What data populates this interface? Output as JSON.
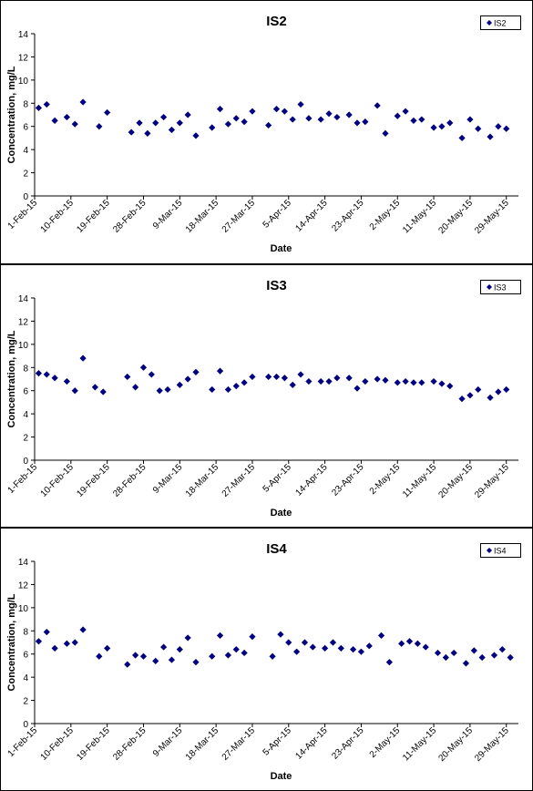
{
  "chart_data": [
    {
      "type": "scatter",
      "title": "IS2",
      "xlabel": "Date",
      "ylabel": "Concentration, mg/L",
      "legend": {
        "position": "top-right",
        "entries": [
          "IS2"
        ]
      },
      "grid": false,
      "ylim": [
        0,
        14
      ],
      "yticks": [
        0,
        2,
        4,
        6,
        8,
        10,
        12,
        14
      ],
      "xlim": [
        "2015-02-01",
        "2015-06-01"
      ],
      "xticks": [
        "1-Feb-15",
        "10-Feb-15",
        "19-Feb-15",
        "28-Feb-15",
        "9-Mar-15",
        "18-Mar-15",
        "27-Mar-15",
        "5-Apr-15",
        "14-Apr-15",
        "23-Apr-15",
        "2-May-15",
        "11-May-15",
        "20-May-15",
        "29-May-15"
      ],
      "marker_color": "#000080",
      "series": [
        {
          "name": "IS2",
          "x": [
            "2015-02-02",
            "2015-02-04",
            "2015-02-06",
            "2015-02-09",
            "2015-02-11",
            "2015-02-13",
            "2015-02-17",
            "2015-02-19",
            "2015-02-25",
            "2015-02-27",
            "2015-03-01",
            "2015-03-03",
            "2015-03-05",
            "2015-03-07",
            "2015-03-09",
            "2015-03-11",
            "2015-03-13",
            "2015-03-17",
            "2015-03-19",
            "2015-03-21",
            "2015-03-23",
            "2015-03-25",
            "2015-03-27",
            "2015-03-31",
            "2015-04-02",
            "2015-04-04",
            "2015-04-06",
            "2015-04-08",
            "2015-04-10",
            "2015-04-13",
            "2015-04-15",
            "2015-04-17",
            "2015-04-20",
            "2015-04-22",
            "2015-04-24",
            "2015-04-27",
            "2015-04-29",
            "2015-05-02",
            "2015-05-04",
            "2015-05-06",
            "2015-05-08",
            "2015-05-11",
            "2015-05-13",
            "2015-05-15",
            "2015-05-18",
            "2015-05-20",
            "2015-05-22",
            "2015-05-25",
            "2015-05-27",
            "2015-05-29"
          ],
          "y": [
            7.6,
            7.9,
            6.5,
            6.8,
            6.2,
            8.1,
            6.0,
            7.2,
            5.5,
            6.3,
            5.4,
            6.3,
            6.8,
            5.7,
            6.3,
            7.0,
            5.2,
            5.9,
            7.5,
            6.2,
            6.7,
            6.4,
            7.3,
            6.1,
            7.5,
            7.3,
            6.6,
            7.9,
            6.7,
            6.6,
            7.1,
            6.8,
            7.0,
            6.3,
            6.4,
            7.8,
            5.4,
            6.9,
            7.3,
            6.5,
            6.6,
            5.9,
            6.0,
            6.3,
            5.0,
            6.6,
            5.8,
            5.1,
            6.0,
            5.8
          ]
        }
      ]
    },
    {
      "type": "scatter",
      "title": "IS3",
      "xlabel": "Date",
      "ylabel": "Concentration, mg/L",
      "legend": {
        "position": "top-right",
        "entries": [
          "IS3"
        ]
      },
      "grid": false,
      "ylim": [
        0,
        14
      ],
      "yticks": [
        0,
        2,
        4,
        6,
        8,
        10,
        12,
        14
      ],
      "xlim": [
        "2015-02-01",
        "2015-06-01"
      ],
      "xticks": [
        "1-Feb-15",
        "10-Feb-15",
        "19-Feb-15",
        "28-Feb-15",
        "9-Mar-15",
        "18-Mar-15",
        "27-Mar-15",
        "5-Apr-15",
        "14-Apr-15",
        "23-Apr-15",
        "2-May-15",
        "11-May-15",
        "20-May-15",
        "29-May-15"
      ],
      "marker_color": "#000080",
      "series": [
        {
          "name": "IS3",
          "x": [
            "2015-02-02",
            "2015-02-04",
            "2015-02-06",
            "2015-02-09",
            "2015-02-11",
            "2015-02-13",
            "2015-02-16",
            "2015-02-18",
            "2015-02-24",
            "2015-02-26",
            "2015-02-28",
            "2015-03-02",
            "2015-03-04",
            "2015-03-06",
            "2015-03-09",
            "2015-03-11",
            "2015-03-13",
            "2015-03-17",
            "2015-03-19",
            "2015-03-21",
            "2015-03-23",
            "2015-03-25",
            "2015-03-27",
            "2015-03-31",
            "2015-04-02",
            "2015-04-04",
            "2015-04-06",
            "2015-04-08",
            "2015-04-10",
            "2015-04-13",
            "2015-04-15",
            "2015-04-17",
            "2015-04-20",
            "2015-04-22",
            "2015-04-24",
            "2015-04-27",
            "2015-04-29",
            "2015-05-02",
            "2015-05-04",
            "2015-05-06",
            "2015-05-08",
            "2015-05-11",
            "2015-05-13",
            "2015-05-15",
            "2015-05-18",
            "2015-05-20",
            "2015-05-22",
            "2015-05-25",
            "2015-05-27",
            "2015-05-29"
          ],
          "y": [
            7.5,
            7.4,
            7.1,
            6.8,
            6.0,
            8.8,
            6.3,
            5.9,
            7.2,
            6.3,
            8.0,
            7.4,
            6.0,
            6.1,
            6.5,
            7.0,
            7.6,
            6.1,
            7.7,
            6.1,
            6.4,
            6.7,
            7.2,
            7.2,
            7.2,
            7.1,
            6.5,
            7.4,
            6.8,
            6.8,
            6.8,
            7.1,
            7.1,
            6.2,
            6.8,
            7.0,
            6.9,
            6.7,
            6.8,
            6.7,
            6.7,
            6.8,
            6.6,
            6.4,
            5.3,
            5.6,
            6.1,
            5.4,
            5.9,
            6.1
          ]
        }
      ]
    },
    {
      "type": "scatter",
      "title": "IS4",
      "xlabel": "Date",
      "ylabel": "Concentration, mg/L",
      "legend": {
        "position": "top-right",
        "entries": [
          "IS4"
        ]
      },
      "grid": false,
      "ylim": [
        0,
        14
      ],
      "yticks": [
        0,
        2,
        4,
        6,
        8,
        10,
        12,
        14
      ],
      "xlim": [
        "2015-02-01",
        "2015-06-01"
      ],
      "xticks": [
        "1-Feb-15",
        "10-Feb-15",
        "19-Feb-15",
        "28-Feb-15",
        "9-Mar-15",
        "18-Mar-15",
        "27-Mar-15",
        "5-Apr-15",
        "14-Apr-15",
        "23-Apr-15",
        "2-May-15",
        "11-May-15",
        "20-May-15",
        "29-May-15"
      ],
      "marker_color": "#000080",
      "series": [
        {
          "name": "IS4",
          "x": [
            "2015-02-02",
            "2015-02-04",
            "2015-02-06",
            "2015-02-09",
            "2015-02-11",
            "2015-02-13",
            "2015-02-17",
            "2015-02-19",
            "2015-02-24",
            "2015-02-26",
            "2015-02-28",
            "2015-03-03",
            "2015-03-05",
            "2015-03-07",
            "2015-03-09",
            "2015-03-11",
            "2015-03-13",
            "2015-03-17",
            "2015-03-19",
            "2015-03-21",
            "2015-03-23",
            "2015-03-25",
            "2015-03-27",
            "2015-04-01",
            "2015-04-03",
            "2015-04-05",
            "2015-04-07",
            "2015-04-09",
            "2015-04-11",
            "2015-04-14",
            "2015-04-16",
            "2015-04-18",
            "2015-04-21",
            "2015-04-23",
            "2015-04-25",
            "2015-04-28",
            "2015-04-30",
            "2015-05-03",
            "2015-05-05",
            "2015-05-07",
            "2015-05-09",
            "2015-05-12",
            "2015-05-14",
            "2015-05-16",
            "2015-05-19",
            "2015-05-21",
            "2015-05-23",
            "2015-05-26",
            "2015-05-28",
            "2015-05-30"
          ],
          "y": [
            7.1,
            7.9,
            6.5,
            6.9,
            7.0,
            8.1,
            5.8,
            6.5,
            5.1,
            5.9,
            5.8,
            5.4,
            6.6,
            5.5,
            6.4,
            7.4,
            5.3,
            5.8,
            7.6,
            5.9,
            6.4,
            6.1,
            7.5,
            5.8,
            7.7,
            7.0,
            6.2,
            7.0,
            6.6,
            6.5,
            7.0,
            6.5,
            6.4,
            6.2,
            6.7,
            7.6,
            5.3,
            6.9,
            7.1,
            6.9,
            6.6,
            6.1,
            5.7,
            6.1,
            5.2,
            6.3,
            5.7,
            5.9,
            6.4,
            5.7
          ]
        }
      ]
    }
  ]
}
